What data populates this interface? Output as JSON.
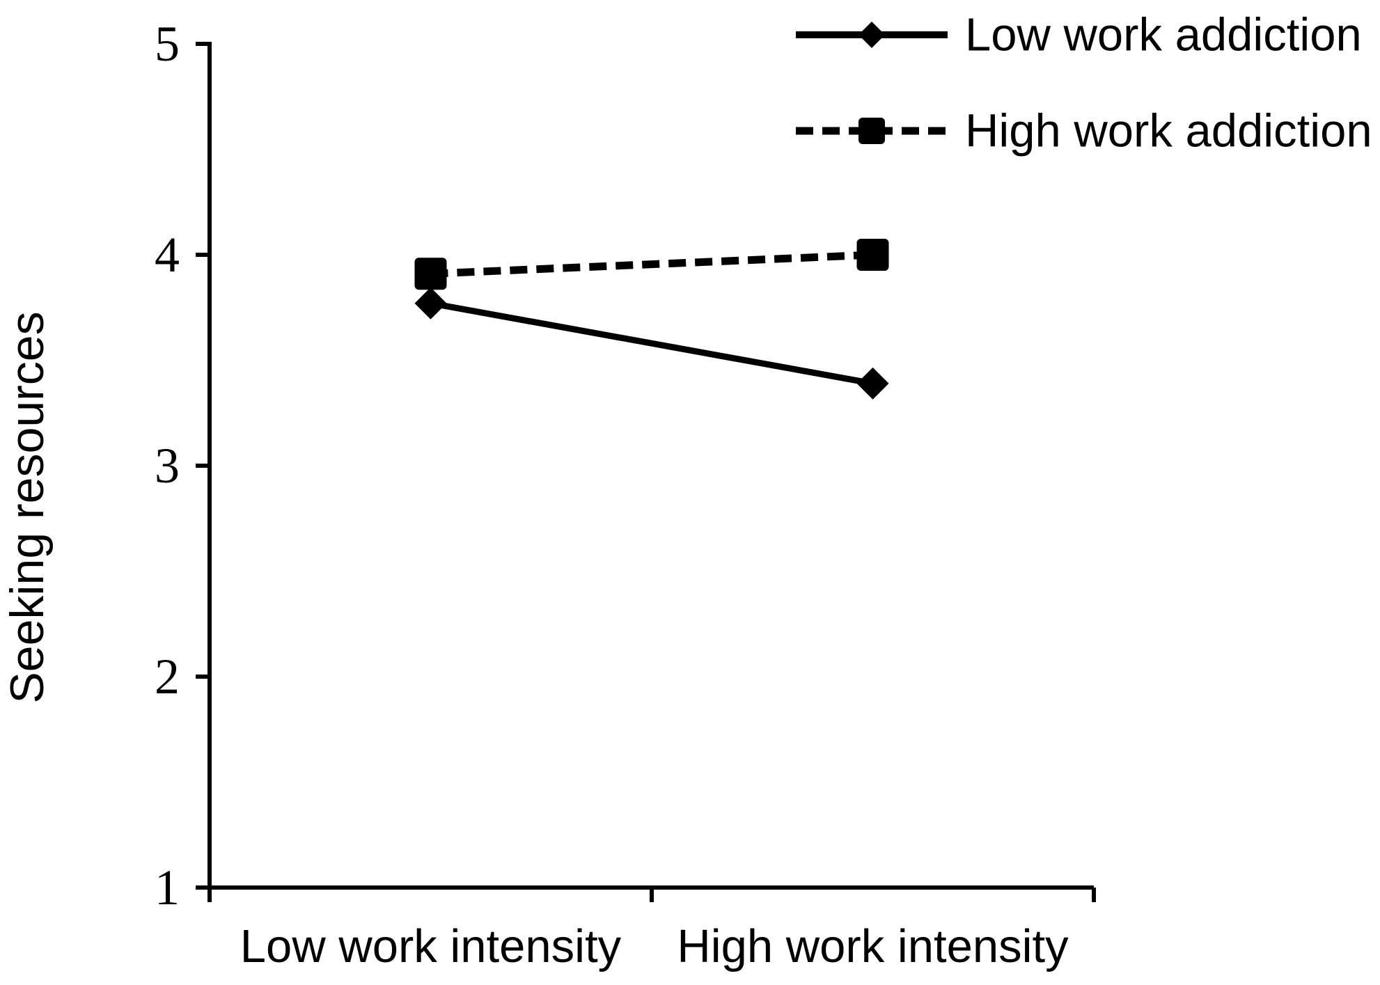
{
  "chart_data": {
    "type": "line",
    "title": "",
    "xlabel": "",
    "ylabel": "Seeking resources",
    "categories": [
      "Low work intensity",
      "High work intensity"
    ],
    "series": [
      {
        "name": "Low work addiction",
        "values": [
          3.77,
          3.39
        ],
        "line_style": "solid",
        "marker": "diamond"
      },
      {
        "name": "High work addiction",
        "values": [
          3.91,
          4.0
        ],
        "line_style": "dashed",
        "marker": "square"
      }
    ],
    "ylim": [
      1,
      5
    ],
    "yticks": [
      1,
      2,
      3,
      4,
      5
    ],
    "grid": false,
    "legend_position": "top-right",
    "axes_shown": [
      "left",
      "bottom"
    ],
    "colors": {
      "foreground": "#000000",
      "background": "#ffffff"
    }
  }
}
